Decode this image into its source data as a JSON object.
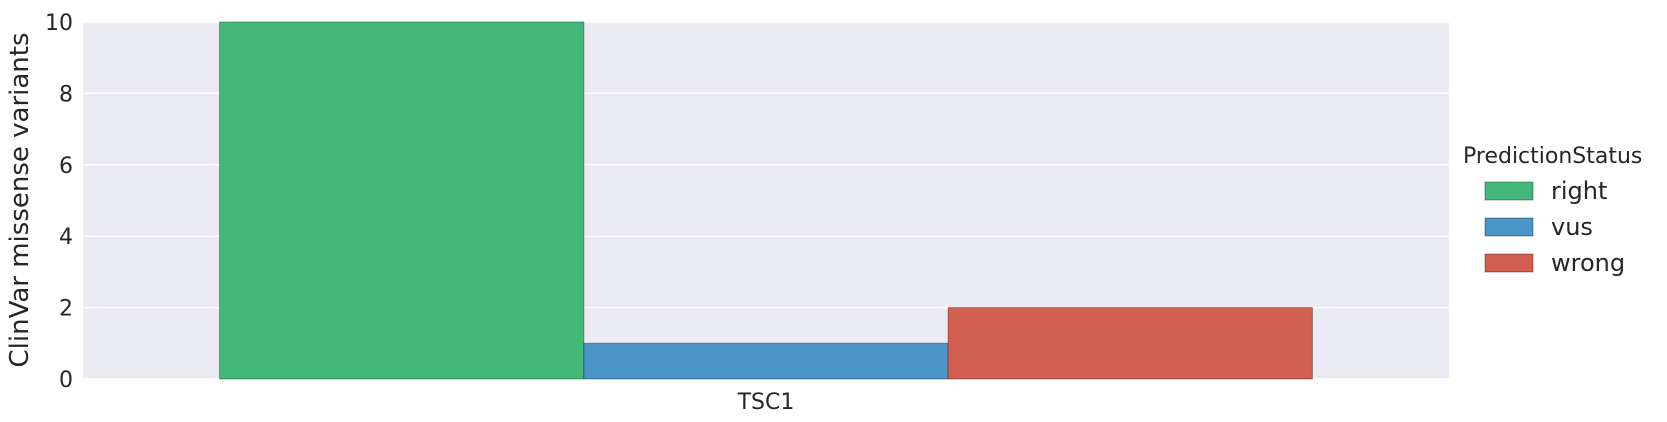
{
  "chart_data": {
    "type": "bar",
    "categories": [
      "TSC1"
    ],
    "series": [
      {
        "name": "right",
        "values": [
          10
        ],
        "color": "#44b878"
      },
      {
        "name": "vus",
        "values": [
          1
        ],
        "color": "#4a95c8"
      },
      {
        "name": "wrong",
        "values": [
          2
        ],
        "color": "#d35f51"
      }
    ],
    "ylabel": "ClinVar missense variants",
    "xlabel": "",
    "ylim": [
      0,
      10
    ],
    "yticks": [
      0,
      2,
      4,
      6,
      8,
      10
    ],
    "grid": true,
    "legend": {
      "title": "PredictionStatus",
      "placement": "right"
    },
    "background": "#eaeaf2"
  }
}
